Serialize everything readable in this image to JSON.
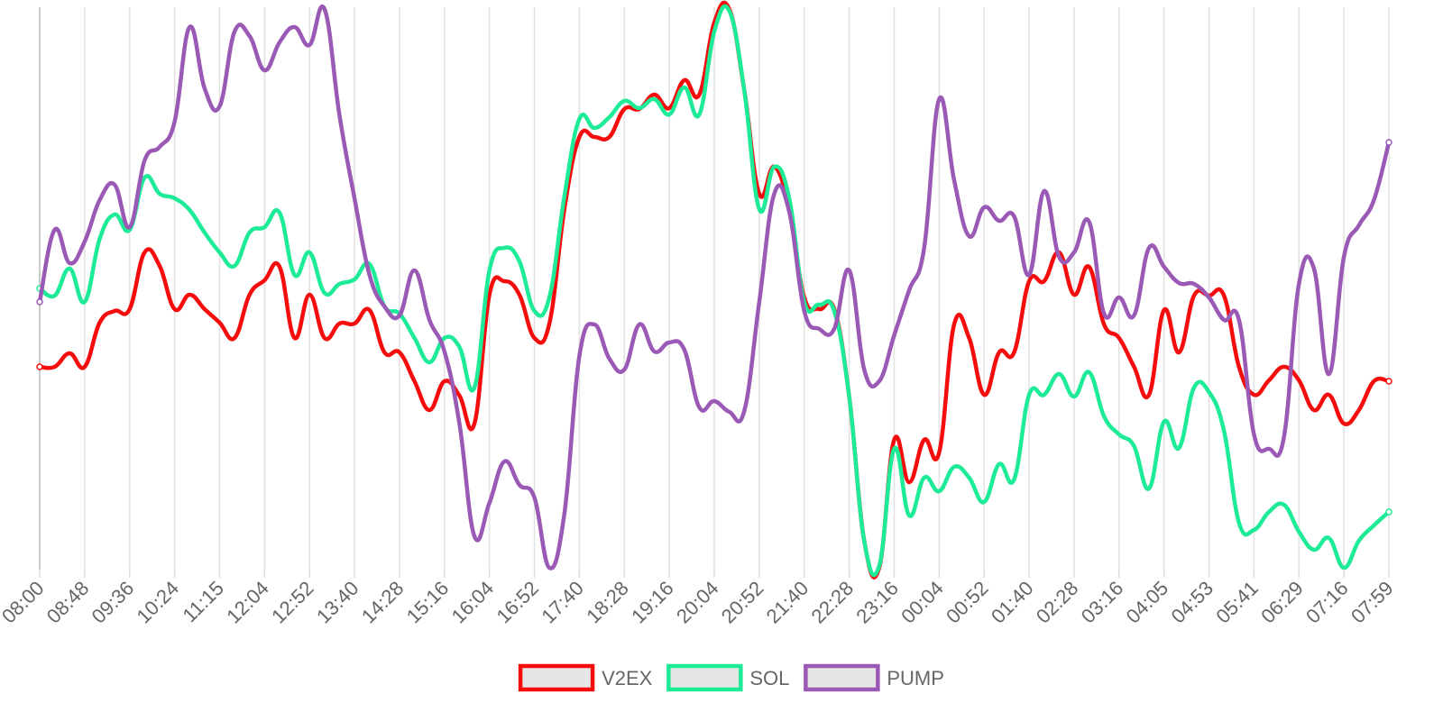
{
  "chart_data": {
    "type": "line",
    "categories": [
      "08:00",
      null,
      null,
      "08:48",
      null,
      null,
      "09:36",
      null,
      null,
      "10:24",
      null,
      null,
      "11:15",
      null,
      null,
      "12:04",
      null,
      null,
      "12:52",
      null,
      null,
      "13:40",
      null,
      null,
      "14:28",
      null,
      null,
      "15:16",
      null,
      null,
      "16:04",
      null,
      null,
      "16:52",
      null,
      null,
      "17:40",
      null,
      null,
      "18:28",
      null,
      null,
      "19:16",
      null,
      null,
      "20:04",
      null,
      null,
      "20:52",
      null,
      null,
      "21:40",
      null,
      null,
      "22:28",
      null,
      null,
      "23:16",
      null,
      null,
      "00:04",
      null,
      null,
      "00:52",
      null,
      null,
      "01:40",
      null,
      null,
      "02:28",
      null,
      null,
      "03:16",
      null,
      null,
      "04:05",
      null,
      null,
      "04:53",
      null,
      null,
      "05:41",
      null,
      null,
      "06:29",
      null,
      null,
      "07:16",
      null,
      null,
      "07:59"
    ],
    "series": [
      {
        "name": "V2EX",
        "color": "#f50d0d",
        "values": [
          225,
          225,
          240,
          225,
          274,
          287,
          289,
          352,
          337,
          289,
          305,
          289,
          274,
          257,
          305,
          321,
          336,
          257,
          305,
          257,
          273,
          273,
          288,
          241,
          241,
          209,
          177,
          209,
          193,
          162,
          305,
          320,
          305,
          257,
          273,
          400,
          480,
          480,
          480,
          511,
          511,
          527,
          512,
          543,
          527,
          607,
          622,
          532,
          417,
          447,
          400,
          302,
          289,
          289,
          192,
          32,
          2,
          144,
          97,
          144,
          130,
          272,
          257,
          194,
          241,
          241,
          320,
          320,
          352,
          305,
          336,
          272,
          257,
          225,
          194,
          288,
          241,
          304,
          304,
          304,
          225,
          194,
          210,
          225,
          210,
          177,
          194,
          162,
          177,
          209,
          209
        ]
      },
      {
        "name": "SOL",
        "color": "#1eeb97",
        "values": [
          312,
          304,
          334,
          297,
          367,
          394,
          377,
          435,
          417,
          412,
          399,
          374,
          352,
          337,
          374,
          380,
          396,
          327,
          352,
          307,
          317,
          322,
          339,
          292,
          284,
          257,
          230,
          257,
          247,
          202,
          332,
          357,
          342,
          287,
          302,
          414,
          500,
          490,
          502,
          520,
          512,
          522,
          505,
          535,
          505,
          597,
          620,
          532,
          400,
          447,
          412,
          297,
          294,
          287,
          192,
          32,
          4,
          134,
          60,
          102,
          87,
          114,
          102,
          75,
          117,
          100,
          194,
          194,
          217,
          192,
          219,
          170,
          150,
          137,
          90,
          164,
          135,
          202,
          197,
          154,
          52,
          44,
          64,
          72,
          42,
          22,
          35,
          2,
          32,
          49,
          64
        ]
      },
      {
        "name": "PUMP",
        "color": "#9b59b6",
        "values": [
          297,
          377,
          340,
          364,
          410,
          427,
          380,
          454,
          469,
          497,
          602,
          534,
          514,
          597,
          592,
          554,
          585,
          602,
          582,
          622,
          504,
          412,
          327,
          292,
          282,
          332,
          277,
          242,
          162,
          37,
          74,
          120,
          94,
          80,
          2,
          62,
          237,
          272,
          234,
          222,
          272,
          242,
          252,
          244,
          180,
          187,
          175,
          176,
          297,
          417,
          397,
          287,
          267,
          267,
          332,
          222,
          209,
          260,
          310,
          357,
          522,
          432,
          370,
          402,
          387,
          392,
          327,
          420,
          347,
          352,
          386,
          284,
          302,
          282,
          357,
          336,
          318,
          317,
          302,
          277,
          277,
          150,
          134,
          147,
          317,
          334,
          217,
          347,
          382,
          410,
          474
        ]
      }
    ],
    "ylim": [
      0,
      624
    ],
    "grid": true,
    "legend": "bottom"
  }
}
